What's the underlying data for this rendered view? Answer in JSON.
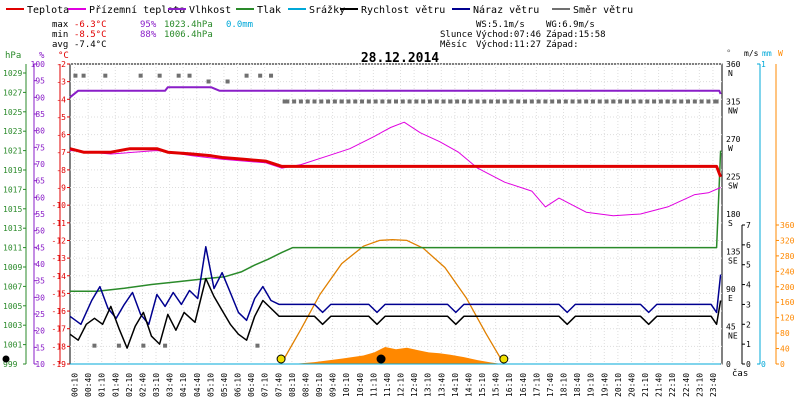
{
  "legend": [
    {
      "label": "Teplota",
      "color": "#e00000"
    },
    {
      "label": "Přízemní teplota",
      "color": "#e000e0"
    },
    {
      "label": "Vlhkost",
      "color": "#8a1ec8"
    },
    {
      "label": "Tlak",
      "color": "#2a8a2a"
    },
    {
      "label": "Srážky",
      "color": "#00a8d8"
    },
    {
      "label": "Rychlost větru",
      "color": "#000000"
    },
    {
      "label": "Náraz větru",
      "color": "#000090"
    },
    {
      "label": "Směr větru",
      "color": "#707070"
    }
  ],
  "stats": {
    "max_label": "max",
    "max_temp": "-6.3°C",
    "max_hum": "95%",
    "max_press": "1023.4hPa",
    "rain": "0.0mm",
    "min_label": "min",
    "min_temp": "-8.5°C",
    "min_hum": "88%",
    "min_press": "1006.4hPa",
    "avg_label": "avg",
    "avg_temp": "-7.4°C"
  },
  "wind_info": {
    "ws": "WS:5.1m/s",
    "wg": "WG:6.9m/s"
  },
  "sun": {
    "label": "Slunce",
    "rise": "Východ:07:46",
    "set": "Západ:15:58"
  },
  "moon": {
    "label": "Měsíc",
    "rise": "Východ:11:27",
    "set": "Západ:"
  },
  "date": "28.12.2014",
  "axis_units": {
    "hpa": "hPa",
    "pct": "%",
    "temp": "°C",
    "dir": "°",
    "ms": "m/s",
    "mm": "mm",
    "whm": "W",
    "time": "čas"
  },
  "colors": {
    "temp": "#e00000",
    "ground": "#e000e0",
    "hum": "#8a1ec8",
    "press": "#2a8a2a",
    "rain": "#00a8d8",
    "speed": "#000000",
    "gust": "#000090",
    "dir": "#707070",
    "solar": "#ff8800",
    "sunpath": "#e08000",
    "marker": "#f0e000"
  },
  "chart_data": {
    "type": "line",
    "title": "28.12.2014",
    "xlabel": "čas",
    "x_ticks": [
      "00:10",
      "00:40",
      "01:10",
      "01:40",
      "02:10",
      "02:40",
      "03:10",
      "03:40",
      "04:10",
      "04:40",
      "05:10",
      "05:40",
      "06:10",
      "06:40",
      "07:10",
      "07:40",
      "08:10",
      "08:40",
      "09:10",
      "09:40",
      "10:10",
      "10:40",
      "11:10",
      "11:40",
      "12:10",
      "12:40",
      "13:10",
      "13:40",
      "14:10",
      "14:40",
      "15:10",
      "15:40",
      "16:10",
      "16:40",
      "17:10",
      "17:40",
      "18:10",
      "18:40",
      "19:10",
      "19:40",
      "20:10",
      "20:40",
      "21:10",
      "21:40",
      "22:10",
      "22:40",
      "23:10",
      "23:40"
    ],
    "axes": {
      "pressure_hpa": {
        "range": [
          999,
          1031
        ],
        "ticks": [
          999,
          1001,
          1003,
          1005,
          1007,
          1009,
          1011,
          1013,
          1015,
          1017,
          1019,
          1021,
          1023,
          1025,
          1027,
          1029
        ]
      },
      "humidity_pct": {
        "range": [
          5,
          105
        ],
        "ticks": [
          10,
          15,
          20,
          25,
          30,
          35,
          40,
          45,
          50,
          55,
          60,
          65,
          70,
          75,
          80,
          85,
          90,
          95,
          100
        ]
      },
      "temperature_c": {
        "range": [
          -19,
          -1
        ],
        "ticks": [
          -2,
          -3,
          -4,
          -5,
          -6,
          -7,
          -8,
          -9,
          -10,
          -11,
          -12,
          -13,
          -14,
          -15,
          -16,
          -17,
          -18,
          -19
        ]
      },
      "wind_dir_deg": {
        "ticks": [
          {
            "v": 360,
            "l": "N"
          },
          {
            "v": 315,
            "l": "NW"
          },
          {
            "v": 270,
            "l": "W"
          },
          {
            "v": 225,
            "l": "SW"
          },
          {
            "v": 180,
            "l": "S"
          },
          {
            "v": 135,
            "l": "SE"
          },
          {
            "v": 90,
            "l": "E"
          },
          {
            "v": 45,
            "l": "NE"
          },
          {
            "v": 0,
            "l": ""
          }
        ]
      },
      "wind_ms": {
        "ticks": [
          7,
          6,
          5,
          4,
          3,
          2,
          1,
          0
        ]
      },
      "rain_mm": {
        "ticks": [
          1,
          0
        ]
      },
      "solar_wm2": {
        "ticks": [
          360,
          320,
          280,
          240,
          200,
          160,
          120,
          80,
          40,
          0
        ]
      }
    },
    "series": [
      {
        "name": "Teplota",
        "axis": "temperature_c",
        "color": "#e00000",
        "points": [
          [
            0,
            -6.8
          ],
          [
            0.5,
            -7.0
          ],
          [
            1.5,
            -7.0
          ],
          [
            2.2,
            -6.8
          ],
          [
            3.2,
            -6.8
          ],
          [
            3.6,
            -7.0
          ],
          [
            4.5,
            -7.1
          ],
          [
            5.2,
            -7.2
          ],
          [
            5.6,
            -7.3
          ],
          [
            6.4,
            -7.4
          ],
          [
            7.2,
            -7.5
          ],
          [
            7.8,
            -7.8
          ],
          [
            9.5,
            -7.8
          ],
          [
            12.0,
            -7.8
          ],
          [
            16.0,
            -7.8
          ],
          [
            20.0,
            -7.8
          ],
          [
            23.8,
            -7.8
          ],
          [
            23.95,
            -8.4
          ]
        ]
      },
      {
        "name": "Přízemní teplota",
        "axis": "temperature_c",
        "color": "#e000e0",
        "points": [
          [
            0,
            -6.9
          ],
          [
            1.5,
            -7.1
          ],
          [
            3.2,
            -6.9
          ],
          [
            4.5,
            -7.2
          ],
          [
            5.6,
            -7.4
          ],
          [
            7.2,
            -7.6
          ],
          [
            7.8,
            -7.9
          ],
          [
            8.5,
            -7.7
          ],
          [
            9.5,
            -7.2
          ],
          [
            10.3,
            -6.8
          ],
          [
            11.2,
            -6.1
          ],
          [
            11.8,
            -5.6
          ],
          [
            12.3,
            -5.3
          ],
          [
            12.9,
            -5.9
          ],
          [
            13.6,
            -6.4
          ],
          [
            14.3,
            -7.0
          ],
          [
            15.0,
            -7.9
          ],
          [
            16.0,
            -8.7
          ],
          [
            17.0,
            -9.2
          ],
          [
            17.5,
            -10.1
          ],
          [
            18.0,
            -9.6
          ],
          [
            19.0,
            -10.4
          ],
          [
            20.0,
            -10.6
          ],
          [
            21.0,
            -10.5
          ],
          [
            22.0,
            -10.1
          ],
          [
            23.0,
            -9.4
          ],
          [
            23.5,
            -9.3
          ],
          [
            23.95,
            -9.0
          ]
        ]
      },
      {
        "name": "Vlhkost",
        "axis": "humidity_pct",
        "color": "#8a1ec8",
        "points": [
          [
            0,
            90
          ],
          [
            0.3,
            92
          ],
          [
            3.5,
            92
          ],
          [
            3.6,
            93
          ],
          [
            5.2,
            93
          ],
          [
            5.5,
            92
          ],
          [
            7.5,
            92
          ],
          [
            23.9,
            92
          ],
          [
            23.95,
            91
          ]
        ]
      },
      {
        "name": "Tlak",
        "axis": "pressure_hpa",
        "color": "#2a8a2a",
        "points": [
          [
            0,
            1006.5
          ],
          [
            1.0,
            1006.5
          ],
          [
            2.0,
            1006.8
          ],
          [
            3.0,
            1007.2
          ],
          [
            4.0,
            1007.5
          ],
          [
            5.0,
            1007.8
          ],
          [
            5.7,
            1008.0
          ],
          [
            6.3,
            1008.5
          ],
          [
            6.8,
            1009.2
          ],
          [
            7.3,
            1009.8
          ],
          [
            7.8,
            1010.5
          ],
          [
            8.2,
            1011.0
          ],
          [
            11.0,
            1011.0
          ],
          [
            20.0,
            1011.0
          ],
          [
            23.8,
            1011.0
          ],
          [
            23.95,
            1021.0
          ]
        ]
      },
      {
        "name": "Srážky",
        "axis": "rain_mm",
        "color": "#00a8d8",
        "points": [
          [
            0,
            0
          ],
          [
            23.95,
            0
          ]
        ]
      },
      {
        "name": "Rychlost větru",
        "axis": "wind_ms",
        "color": "#000000",
        "points": [
          [
            0,
            1.5
          ],
          [
            0.3,
            1.2
          ],
          [
            0.6,
            2.0
          ],
          [
            0.9,
            2.3
          ],
          [
            1.2,
            2.0
          ],
          [
            1.5,
            2.9
          ],
          [
            1.8,
            1.8
          ],
          [
            2.1,
            0.8
          ],
          [
            2.4,
            1.9
          ],
          [
            2.7,
            2.6
          ],
          [
            3.0,
            1.4
          ],
          [
            3.3,
            1.0
          ],
          [
            3.6,
            2.5
          ],
          [
            3.9,
            1.7
          ],
          [
            4.2,
            2.6
          ],
          [
            4.6,
            2.1
          ],
          [
            5.0,
            4.3
          ],
          [
            5.3,
            3.4
          ],
          [
            5.6,
            2.7
          ],
          [
            5.9,
            2.0
          ],
          [
            6.2,
            1.5
          ],
          [
            6.5,
            1.2
          ],
          [
            6.8,
            2.4
          ],
          [
            7.1,
            3.2
          ],
          [
            7.4,
            2.8
          ],
          [
            7.7,
            2.4
          ],
          [
            8.0,
            2.4
          ],
          [
            9.0,
            2.4
          ],
          [
            9.3,
            2.0
          ],
          [
            9.6,
            2.4
          ],
          [
            11.0,
            2.4
          ],
          [
            11.3,
            2.0
          ],
          [
            11.6,
            2.4
          ],
          [
            13.9,
            2.4
          ],
          [
            14.2,
            2.0
          ],
          [
            14.5,
            2.4
          ],
          [
            18.0,
            2.4
          ],
          [
            18.3,
            2.0
          ],
          [
            18.6,
            2.4
          ],
          [
            21.0,
            2.4
          ],
          [
            21.3,
            2.0
          ],
          [
            21.6,
            2.4
          ],
          [
            23.6,
            2.4
          ],
          [
            23.8,
            2.0
          ],
          [
            23.95,
            3.2
          ]
        ]
      },
      {
        "name": "Náraz větru",
        "axis": "wind_ms",
        "color": "#000090",
        "points": [
          [
            0,
            2.4
          ],
          [
            0.4,
            2.0
          ],
          [
            0.8,
            3.2
          ],
          [
            1.1,
            3.9
          ],
          [
            1.4,
            2.8
          ],
          [
            1.7,
            2.3
          ],
          [
            2.0,
            3.0
          ],
          [
            2.3,
            3.6
          ],
          [
            2.6,
            2.5
          ],
          [
            2.9,
            2.0
          ],
          [
            3.2,
            3.5
          ],
          [
            3.5,
            2.9
          ],
          [
            3.8,
            3.6
          ],
          [
            4.1,
            3.0
          ],
          [
            4.4,
            3.7
          ],
          [
            4.7,
            3.3
          ],
          [
            5.0,
            5.9
          ],
          [
            5.3,
            3.8
          ],
          [
            5.6,
            4.6
          ],
          [
            5.9,
            3.6
          ],
          [
            6.2,
            2.6
          ],
          [
            6.5,
            2.2
          ],
          [
            6.8,
            3.3
          ],
          [
            7.1,
            3.9
          ],
          [
            7.4,
            3.2
          ],
          [
            7.7,
            3.0
          ],
          [
            8.0,
            3.0
          ],
          [
            9.0,
            3.0
          ],
          [
            9.3,
            2.6
          ],
          [
            9.6,
            3.0
          ],
          [
            11.0,
            3.0
          ],
          [
            11.3,
            2.6
          ],
          [
            11.6,
            3.0
          ],
          [
            13.9,
            3.0
          ],
          [
            14.2,
            2.6
          ],
          [
            14.5,
            3.0
          ],
          [
            18.0,
            3.0
          ],
          [
            18.3,
            2.6
          ],
          [
            18.6,
            3.0
          ],
          [
            21.0,
            3.0
          ],
          [
            21.3,
            2.6
          ],
          [
            21.6,
            3.0
          ],
          [
            23.6,
            3.0
          ],
          [
            23.8,
            2.6
          ],
          [
            23.95,
            4.5
          ]
        ]
      },
      {
        "name": "Směr větru",
        "axis": "wind_dir_deg",
        "color": "#707070",
        "style": "dots",
        "points": [
          [
            0.2,
            346
          ],
          [
            0.5,
            346
          ],
          [
            1.3,
            346
          ],
          [
            2.6,
            346
          ],
          [
            3.3,
            346
          ],
          [
            4.0,
            346
          ],
          [
            4.4,
            346
          ],
          [
            5.1,
            339
          ],
          [
            5.8,
            339
          ],
          [
            6.5,
            346
          ],
          [
            7.0,
            346
          ],
          [
            7.4,
            346
          ],
          [
            7.9,
            315
          ],
          [
            10.0,
            315
          ],
          [
            12.0,
            315
          ],
          [
            14.0,
            315
          ],
          [
            16.0,
            315
          ],
          [
            18.0,
            315
          ],
          [
            20.0,
            315
          ],
          [
            22.0,
            315
          ],
          [
            23.8,
            315
          ],
          [
            0.9,
            22
          ],
          [
            1.8,
            22
          ],
          [
            2.7,
            22
          ],
          [
            3.5,
            22
          ],
          [
            6.9,
            22
          ]
        ]
      },
      {
        "name": "Solar",
        "axis": "solar_wm2",
        "color": "#ff8800",
        "style": "area",
        "points": [
          [
            8.2,
            0
          ],
          [
            9.0,
            5
          ],
          [
            10.0,
            14
          ],
          [
            10.8,
            22
          ],
          [
            11.2,
            30
          ],
          [
            11.6,
            44
          ],
          [
            12.0,
            38
          ],
          [
            12.4,
            42
          ],
          [
            12.8,
            36
          ],
          [
            13.2,
            30
          ],
          [
            13.6,
            28
          ],
          [
            14.0,
            24
          ],
          [
            14.5,
            18
          ],
          [
            15.0,
            10
          ],
          [
            15.5,
            4
          ],
          [
            15.9,
            0
          ]
        ]
      },
      {
        "name": "Sun path",
        "axis": "solar_wm2",
        "color": "#e08000",
        "style": "curve",
        "points": [
          [
            7.77,
            0
          ],
          [
            8.5,
            90
          ],
          [
            9.2,
            180
          ],
          [
            10.0,
            260
          ],
          [
            10.8,
            305
          ],
          [
            11.4,
            320
          ],
          [
            11.87,
            322
          ],
          [
            12.4,
            320
          ],
          [
            13.0,
            300
          ],
          [
            13.8,
            250
          ],
          [
            14.6,
            170
          ],
          [
            15.3,
            80
          ],
          [
            15.97,
            0
          ]
        ]
      }
    ],
    "markers": [
      {
        "name": "sunrise",
        "x": 7.77,
        "color": "#f0e000"
      },
      {
        "name": "sunset",
        "x": 15.97,
        "color": "#f0e000"
      },
      {
        "name": "moonrise",
        "x": 11.45,
        "color": "#000000"
      }
    ]
  }
}
